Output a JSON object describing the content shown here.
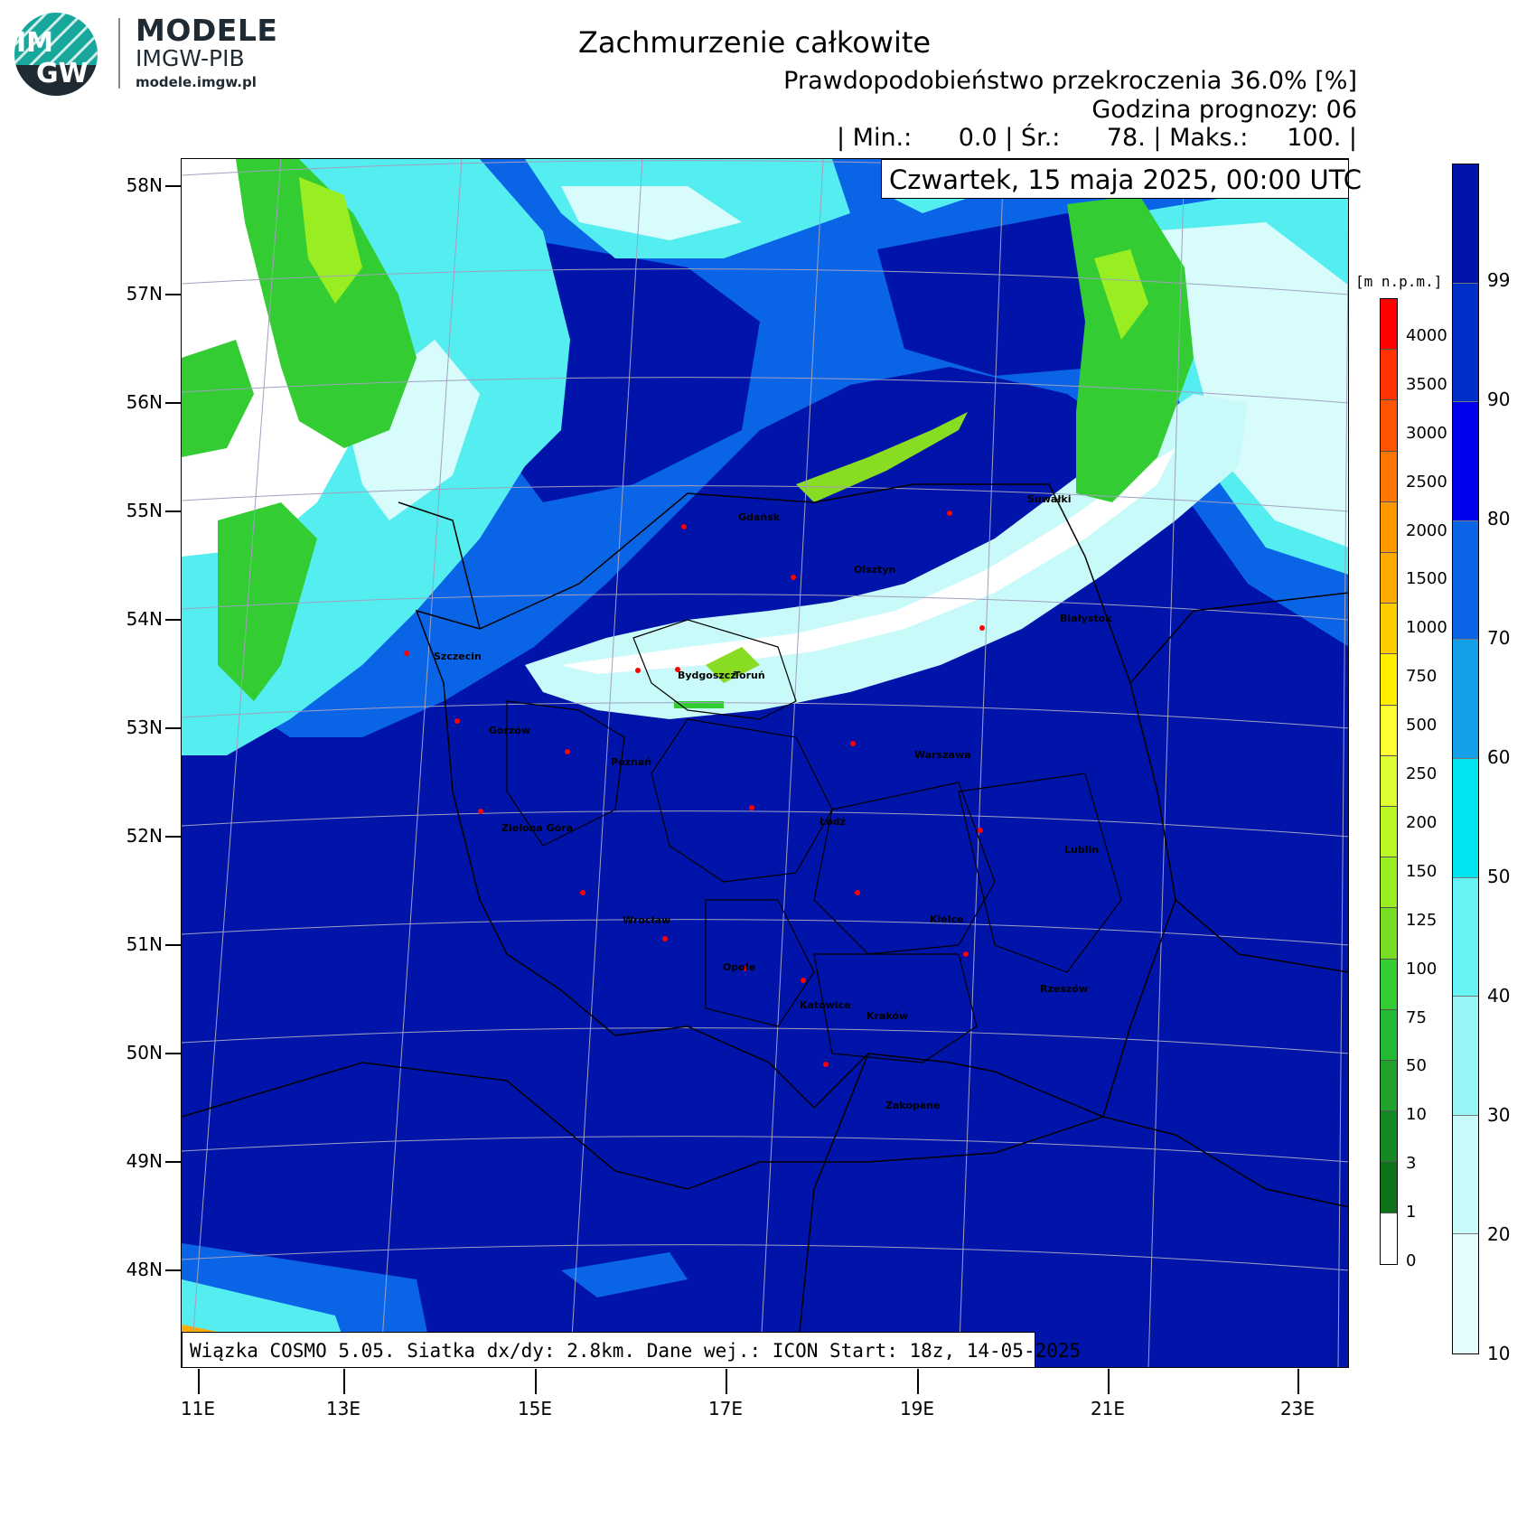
{
  "logo": {
    "badge_top": "IM",
    "badge_bottom": "GW",
    "word": "MODELE",
    "sub": "IMGW-PIB",
    "url": "modele.imgw.pl"
  },
  "header": {
    "title": "Zachmurzenie całkowite",
    "line1": "Prawdopodobieństwo przekroczenia 36.0% [%]",
    "line2": "Godzina prognozy: 06",
    "stats": "| Min.:      0.0 | Śr.:      78. | Maks.:     100. |",
    "date": "Czwartek, 15 maja 2025, 00:00 UTC"
  },
  "footer": "Wiązka COSMO 5.05. Siatka dx/dy: 2.8km. Dane wej.: ICON Start: 18z, 14-05-2025",
  "lat_labels": [
    "58N",
    "57N",
    "56N",
    "55N",
    "54N",
    "53N",
    "52N",
    "51N",
    "50N",
    "49N",
    "48N"
  ],
  "lon_labels": [
    "11E",
    "13E",
    "15E",
    "17E",
    "19E",
    "21E",
    "23E"
  ],
  "cities": [
    {
      "name": "Gdańsk"
    },
    {
      "name": "Olsztyn"
    },
    {
      "name": "Suwałki"
    },
    {
      "name": "Białystok"
    },
    {
      "name": "Szczecin"
    },
    {
      "name": "Bydgoszcz"
    },
    {
      "name": "Toruń"
    },
    {
      "name": "Gorzów"
    },
    {
      "name": "Poznań"
    },
    {
      "name": "Warszawa"
    },
    {
      "name": "Łódź"
    },
    {
      "name": "Zielona Góra"
    },
    {
      "name": "Lublin"
    },
    {
      "name": "Wrocław"
    },
    {
      "name": "Kielce"
    },
    {
      "name": "Opole"
    },
    {
      "name": "Rzeszów"
    },
    {
      "name": "Katowice"
    },
    {
      "name": "Kraków"
    },
    {
      "name": "Zakopane"
    }
  ],
  "terrain_legend": {
    "unit": "[m n.p.m.]",
    "labels": [
      "4000",
      "3500",
      "3000",
      "2500",
      "2000",
      "1500",
      "1000",
      "750",
      "500",
      "250",
      "200",
      "150",
      "125",
      "100",
      "75",
      "50",
      "10",
      "3",
      "1",
      "0"
    ],
    "colors": [
      "#ff0000",
      "#ff3300",
      "#ff5500",
      "#ff7700",
      "#ff9900",
      "#ffaa00",
      "#ffcc00",
      "#ffee00",
      "#ffff33",
      "#ddff33",
      "#bbf722",
      "#99ee22",
      "#77dd22",
      "#33cc33",
      "#22bb33",
      "#1fa32b",
      "#158a22",
      "#0e7318",
      "#ffffff"
    ]
  },
  "cloud_legend": {
    "labels": [
      "99",
      "90",
      "80",
      "70",
      "60",
      "50",
      "40",
      "30",
      "20",
      "10"
    ],
    "colors": [
      "#0014aa",
      "#0030c8",
      "#0000ee",
      "#0a64e6",
      "#14a0e8",
      "#00e4f0",
      "#66f4f4",
      "#99f6f6",
      "#c8fafa",
      "#e6fdfd"
    ]
  },
  "colors": {
    "sea_cloud": "#0014aa",
    "clear": "#ffffff",
    "land_green": "#33cc33",
    "cyan": "#55eef0"
  }
}
